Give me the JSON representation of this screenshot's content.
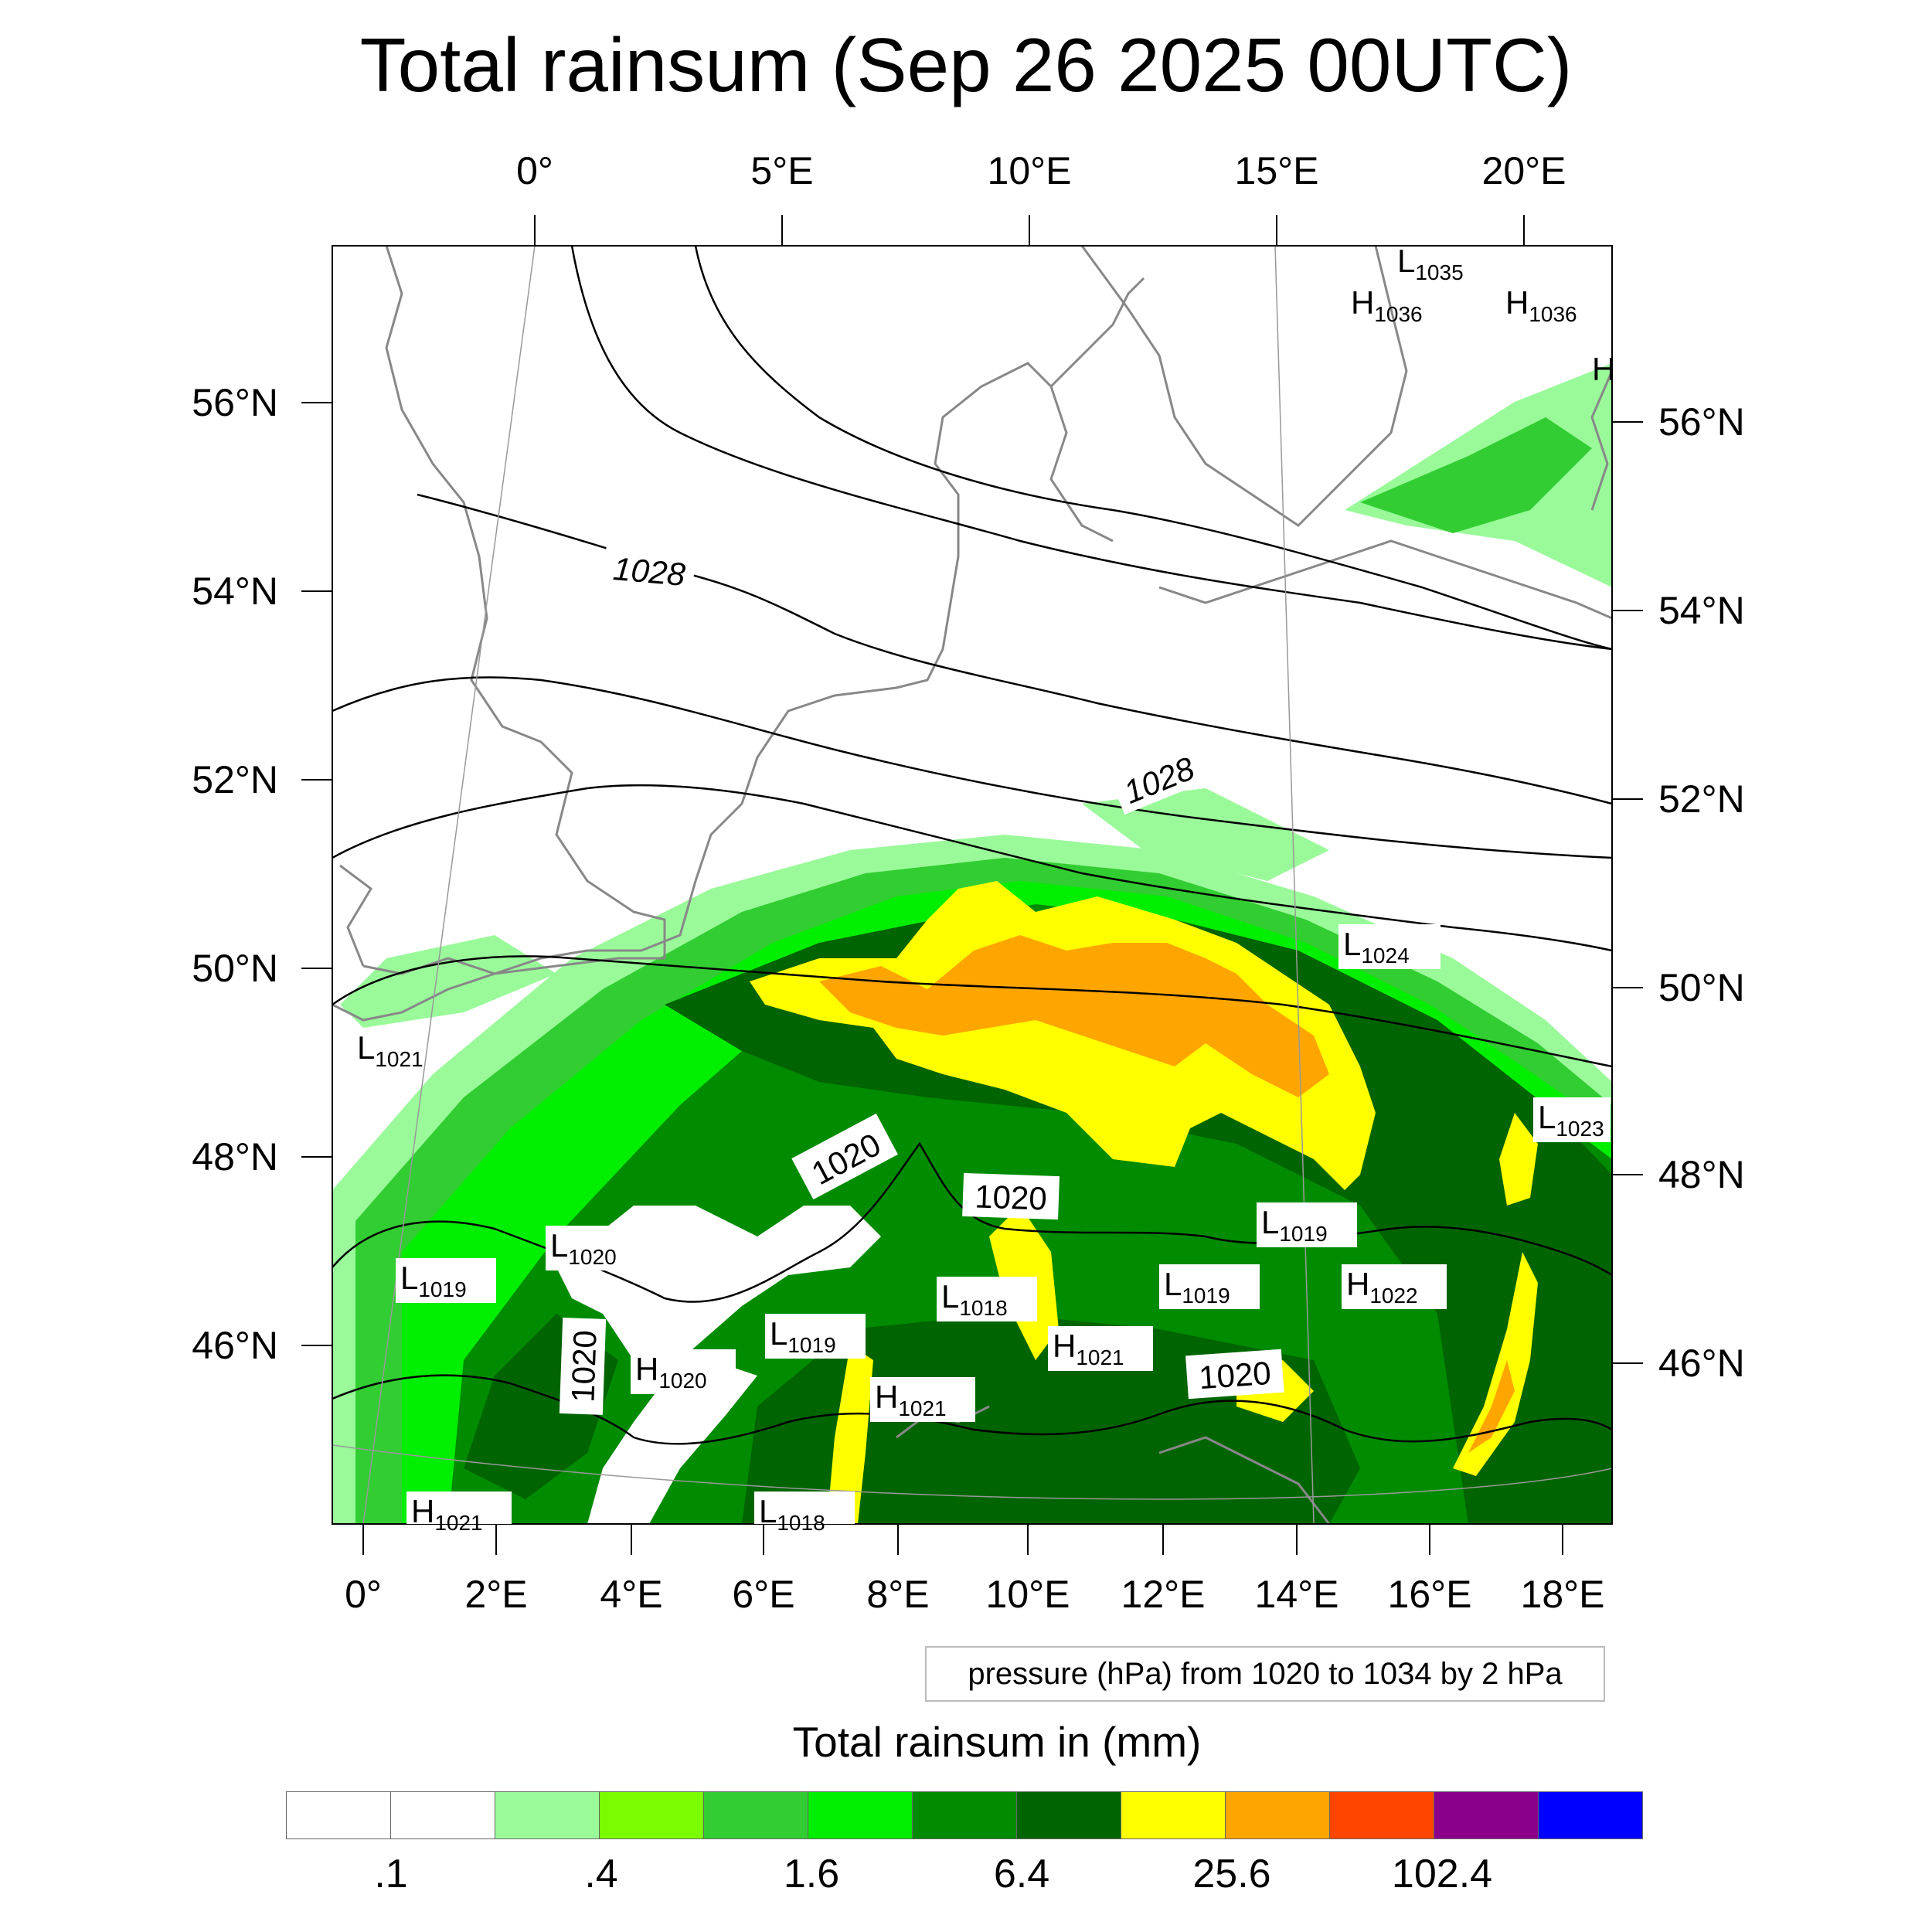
{
  "title": "Total rainsum (Sep 26 2025 00UTC)",
  "top_lon_labels": [
    "0°",
    "5°E",
    "10°E",
    "15°E",
    "20°E"
  ],
  "bottom_lon_labels": [
    "0°",
    "2°E",
    "4°E",
    "6°E",
    "8°E",
    "10°E",
    "12°E",
    "14°E",
    "16°E",
    "18°E"
  ],
  "left_lat_labels": [
    "56°N",
    "54°N",
    "52°N",
    "50°N",
    "48°N",
    "46°N"
  ],
  "right_lat_labels": [
    "56°N",
    "54°N",
    "52°N",
    "50°N",
    "48°N",
    "46°N"
  ],
  "pressure_note": "pressure (hPa) from 1020 to 1034 by 2 hPa",
  "contour_labels": [
    "1028",
    "1028",
    "1020",
    "1020",
    "1020",
    "1020"
  ],
  "pressure_centers": [
    {
      "type": "L",
      "value": "1035"
    },
    {
      "type": "H",
      "value": "1036"
    },
    {
      "type": "H",
      "value": "1036"
    },
    {
      "type": "H",
      "value": ""
    },
    {
      "type": "L",
      "value": "1024"
    },
    {
      "type": "L",
      "value": "1021"
    },
    {
      "type": "L",
      "value": "1023"
    },
    {
      "type": "L",
      "value": "1019"
    },
    {
      "type": "L",
      "value": "1020"
    },
    {
      "type": "L",
      "value": "1019"
    },
    {
      "type": "L",
      "value": "1018"
    },
    {
      "type": "L",
      "value": "1019"
    },
    {
      "type": "H",
      "value": "1022"
    },
    {
      "type": "L",
      "value": "1019"
    },
    {
      "type": "H",
      "value": "1021"
    },
    {
      "type": "H",
      "value": "1020"
    },
    {
      "type": "H",
      "value": "1021"
    },
    {
      "type": "H",
      "value": "1021"
    },
    {
      "type": "L",
      "value": "1018"
    }
  ],
  "legend": {
    "title": "Total rainsum in (mm)",
    "colors": [
      "#ffffff",
      "#ffffff",
      "#9afa9a",
      "#7cfc00",
      "#32cd32",
      "#00ee00",
      "#008b00",
      "#006400",
      "#ffff00",
      "#ffa500",
      "#ff4500",
      "#8b008b",
      "#0000ff"
    ],
    "labels": [
      ".1",
      ".4",
      "1.6",
      "6.4",
      "25.6",
      "102.4"
    ]
  }
}
